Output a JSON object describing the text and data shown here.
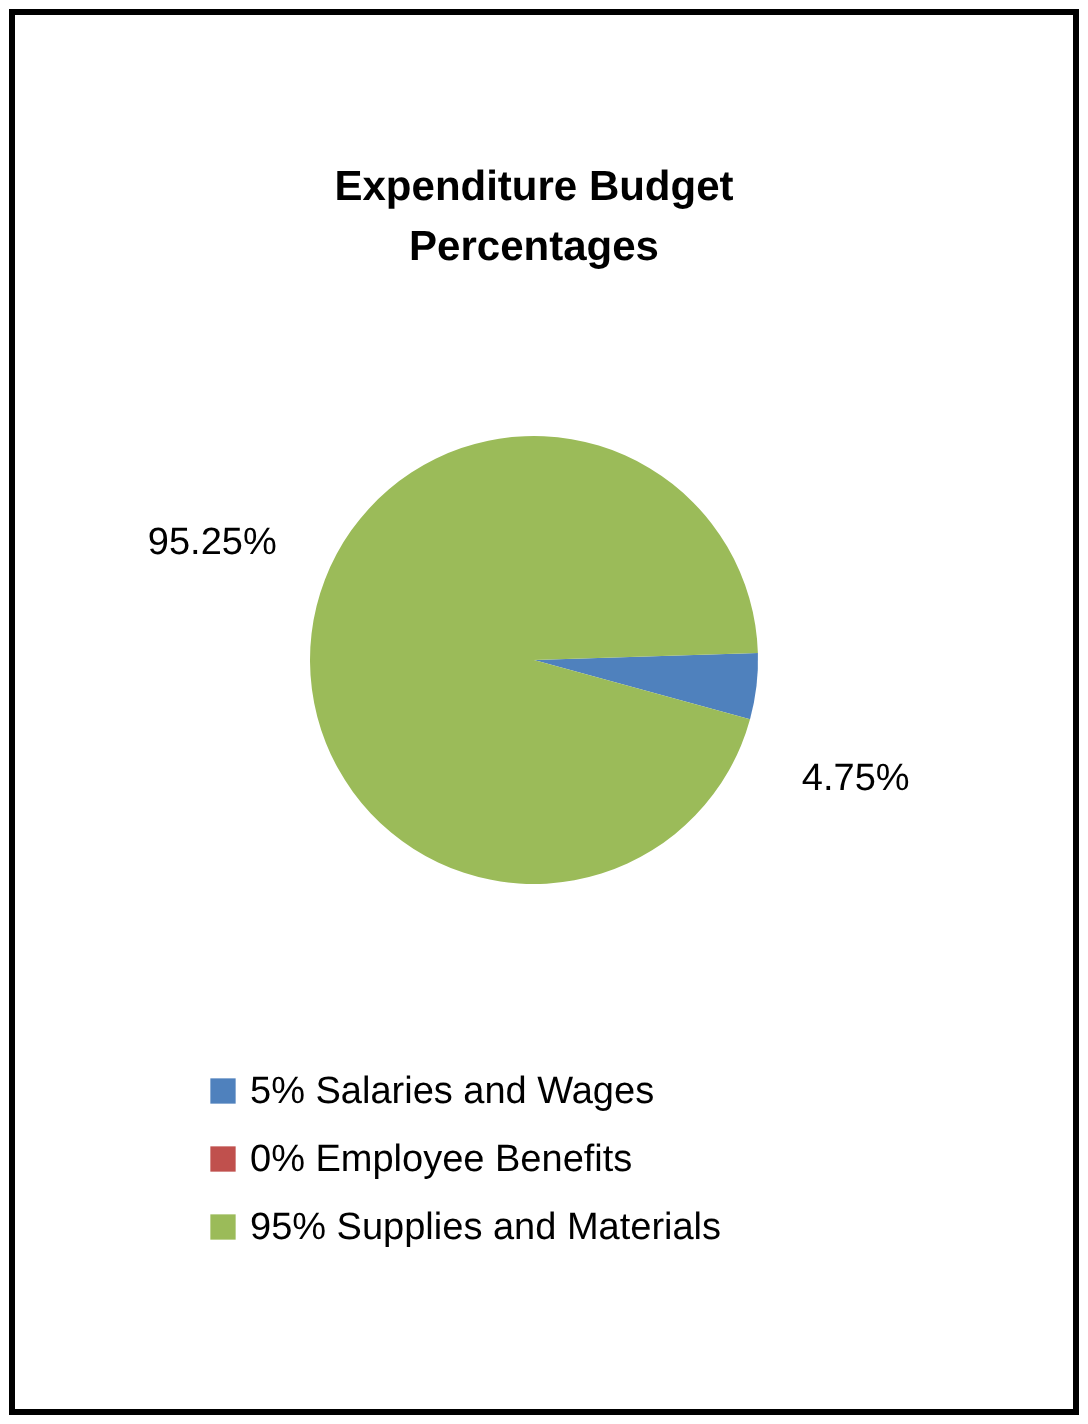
{
  "chart_data": {
    "type": "pie",
    "title": "Expenditure Budget Percentages",
    "categories": [
      "5% Salaries and Wages",
      "0% Employee Benefits",
      "95% Supplies and Materials"
    ],
    "values": [
      4.75,
      0,
      95.25
    ],
    "colors": [
      "#4f81bd",
      "#c0504d",
      "#9bbb59"
    ],
    "value_labels": [
      "4.75%",
      null,
      "95.25%"
    ],
    "legend": "bottom"
  }
}
